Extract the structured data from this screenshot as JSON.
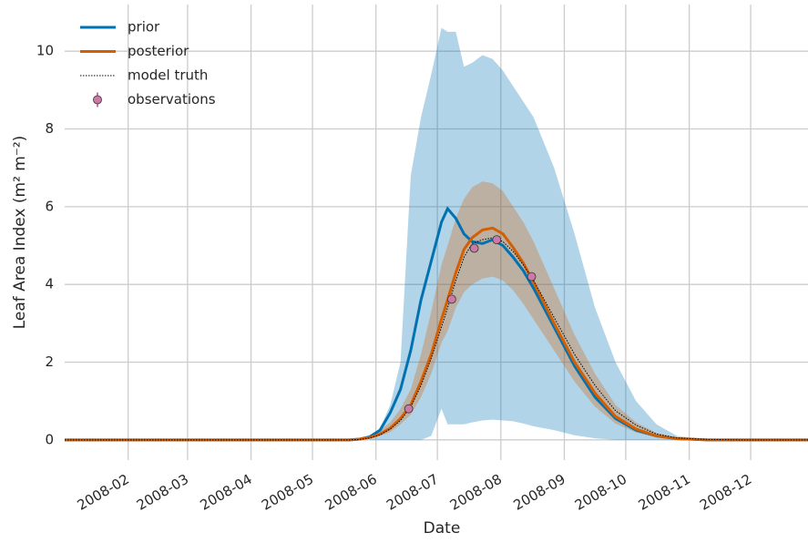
{
  "chart_data": {
    "type": "line",
    "xlabel": "Date",
    "ylabel": "Leaf Area Index (m² m⁻²)",
    "x": [
      1,
      140,
      145,
      150,
      155,
      160,
      165,
      170,
      175,
      180,
      185,
      188,
      192,
      196,
      200,
      205,
      210,
      215,
      220,
      225,
      230,
      240,
      250,
      260,
      270,
      280,
      290,
      300,
      315,
      330,
      364
    ],
    "xlim": [
      1,
      364
    ],
    "xticks": [
      {
        "value": 32,
        "label": "2008-02"
      },
      {
        "value": 61,
        "label": "2008-03"
      },
      {
        "value": 92,
        "label": "2008-04"
      },
      {
        "value": 122,
        "label": "2008-05"
      },
      {
        "value": 153,
        "label": "2008-06"
      },
      {
        "value": 183,
        "label": "2008-07"
      },
      {
        "value": 214,
        "label": "2008-08"
      },
      {
        "value": 245,
        "label": "2008-09"
      },
      {
        "value": 275,
        "label": "2008-10"
      },
      {
        "value": 306,
        "label": "2008-11"
      },
      {
        "value": 336,
        "label": "2008-12"
      }
    ],
    "ylim": [
      -0.52,
      11.2
    ],
    "yticks": [
      0,
      2,
      4,
      6,
      8,
      10
    ],
    "grid": true,
    "legend": "upper left",
    "series": [
      {
        "name": "prior",
        "color": "#0072b2",
        "values": [
          0,
          0,
          0.02,
          0.08,
          0.25,
          0.7,
          1.3,
          2.3,
          3.6,
          4.6,
          5.6,
          5.95,
          5.7,
          5.3,
          5.1,
          5.05,
          5.15,
          5.0,
          4.7,
          4.35,
          3.9,
          2.9,
          1.9,
          1.1,
          0.55,
          0.25,
          0.1,
          0.03,
          0,
          0,
          0
        ],
        "band": {
          "lower": [
            0,
            0,
            0,
            0,
            0,
            0,
            0,
            0,
            0,
            0.1,
            0.8,
            0.4,
            0.4,
            0.4,
            0.45,
            0.5,
            0.52,
            0.5,
            0.48,
            0.42,
            0.35,
            0.25,
            0.12,
            0.04,
            0,
            0,
            0,
            0,
            0,
            0,
            0
          ],
          "upper": [
            0,
            0,
            0,
            0,
            0.3,
            0.9,
            2.0,
            6.8,
            8.3,
            9.4,
            10.6,
            10.5,
            10.5,
            9.6,
            9.7,
            9.9,
            9.8,
            9.5,
            9.1,
            8.7,
            8.3,
            7.0,
            5.3,
            3.4,
            2.0,
            1.0,
            0.4,
            0.1,
            0.01,
            0,
            0
          ]
        }
      },
      {
        "name": "posterior",
        "color": "#d55e00",
        "values": [
          0,
          0,
          0.02,
          0.06,
          0.15,
          0.3,
          0.55,
          0.9,
          1.5,
          2.2,
          3.1,
          3.6,
          4.3,
          4.9,
          5.2,
          5.4,
          5.45,
          5.3,
          4.95,
          4.55,
          4.05,
          3.0,
          2.0,
          1.2,
          0.6,
          0.28,
          0.1,
          0.03,
          0,
          0,
          0
        ],
        "band": {
          "lower": [
            0,
            0,
            0.01,
            0.04,
            0.1,
            0.2,
            0.4,
            0.65,
            1.1,
            1.7,
            2.5,
            2.8,
            3.4,
            3.8,
            4.0,
            4.15,
            4.2,
            4.1,
            3.85,
            3.5,
            3.1,
            2.3,
            1.5,
            0.85,
            0.42,
            0.19,
            0.07,
            0.02,
            0,
            0,
            0
          ],
          "upper": [
            0,
            0,
            0.03,
            0.1,
            0.25,
            0.45,
            0.8,
            1.3,
            2.2,
            3.3,
            4.5,
            5.0,
            5.7,
            6.2,
            6.5,
            6.65,
            6.6,
            6.4,
            6.0,
            5.6,
            5.1,
            3.9,
            2.7,
            1.7,
            0.9,
            0.45,
            0.18,
            0.06,
            0.01,
            0,
            0
          ]
        }
      },
      {
        "name": "model truth",
        "color": "#000000",
        "dash": "dotted",
        "values": [
          0,
          0,
          0.01,
          0.05,
          0.13,
          0.28,
          0.5,
          0.85,
          1.4,
          2.1,
          2.9,
          3.4,
          4.1,
          4.7,
          5.05,
          5.15,
          5.2,
          5.1,
          4.85,
          4.5,
          4.1,
          3.15,
          2.2,
          1.4,
          0.75,
          0.38,
          0.15,
          0.05,
          0.01,
          0,
          0
        ]
      },
      {
        "name": "observations",
        "color": "#cc79a7",
        "marker": true,
        "x": [
          169,
          190,
          201,
          212,
          229
        ],
        "values": [
          0.8,
          3.62,
          4.93,
          5.15,
          4.2
        ]
      }
    ]
  }
}
